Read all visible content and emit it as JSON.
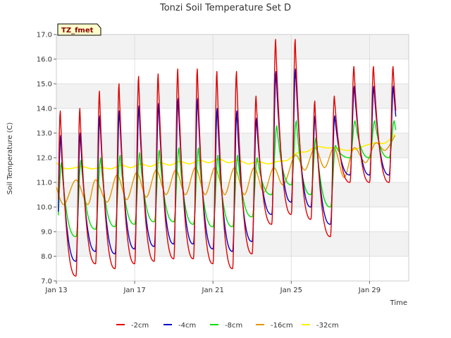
{
  "chart_data": {
    "type": "line",
    "title": "Tonzi Soil Temperature Set D",
    "xlabel": "Time",
    "ylabel": "Soil Temperature (C)",
    "site_badge": "TZ_fmet",
    "ylim": [
      7.0,
      17.0
    ],
    "yticks": [
      7.0,
      8.0,
      9.0,
      10.0,
      11.0,
      12.0,
      13.0,
      14.0,
      15.0,
      16.0,
      17.0
    ],
    "xlim": [
      0,
      18
    ],
    "xticks": [
      {
        "x": 0,
        "label": "Jan 13"
      },
      {
        "x": 4,
        "label": "Jan 17"
      },
      {
        "x": 8,
        "label": "Jan 21"
      },
      {
        "x": 12,
        "label": "Jan 25"
      },
      {
        "x": 16,
        "label": "Jan 29"
      }
    ],
    "grid": true,
    "legend_position": "bottom",
    "colors": {
      "-2cm": "#e00000",
      "-4cm": "#0000cc",
      "-8cm": "#00e000",
      "-16cm": "#e69500",
      "-32cm": "#ffee00"
    },
    "series": [
      {
        "name": "-2cm",
        "key": "d2",
        "width": 1.4
      },
      {
        "name": "-4cm",
        "key": "d4",
        "width": 1.4
      },
      {
        "name": "-8cm",
        "key": "d8",
        "width": 1.4
      },
      {
        "name": "-16cm",
        "key": "d16",
        "width": 1.4
      },
      {
        "name": "-32cm",
        "key": "d32",
        "width": 1.6
      }
    ],
    "day_maxima": {
      "d2": [
        13.9,
        14.0,
        14.7,
        15.0,
        15.3,
        15.4,
        15.6,
        15.6,
        15.5,
        15.5,
        14.5,
        16.8,
        16.8,
        14.3,
        14.5,
        15.7
      ],
      "d4": [
        12.9,
        13.0,
        13.7,
        13.9,
        14.1,
        14.2,
        14.4,
        14.4,
        14.0,
        13.9,
        13.6,
        15.5,
        15.6,
        13.7,
        13.7,
        14.9
      ],
      "d8": [
        11.8,
        11.9,
        12.0,
        12.1,
        12.2,
        12.3,
        12.4,
        12.4,
        12.1,
        12.1,
        12.0,
        13.3,
        13.5,
        12.8,
        12.5,
        13.5
      ]
    },
    "day_minima": {
      "d2": [
        7.2,
        7.2,
        7.7,
        7.5,
        7.7,
        7.8,
        7.9,
        7.9,
        7.7,
        7.5,
        8.1,
        9.3,
        9.7,
        9.5,
        8.8,
        11.0
      ],
      "d4": [
        7.8,
        7.8,
        8.2,
        8.1,
        8.3,
        8.4,
        8.5,
        8.5,
        8.3,
        8.2,
        8.6,
        9.7,
        10.2,
        10.0,
        9.3,
        11.3
      ],
      "d8": [
        8.8,
        8.8,
        9.1,
        9.2,
        9.3,
        9.4,
        9.4,
        9.3,
        9.2,
        9.2,
        9.6,
        10.5,
        10.9,
        10.5,
        10.0,
        12.0
      ]
    },
    "d16_points": [
      [
        0,
        10.8
      ],
      [
        0.4,
        10.1
      ],
      [
        1.0,
        11.1
      ],
      [
        1.6,
        10.1
      ],
      [
        2.0,
        11.1
      ],
      [
        2.6,
        10.2
      ],
      [
        3.1,
        11.3
      ],
      [
        3.6,
        10.3
      ],
      [
        4.1,
        11.4
      ],
      [
        4.6,
        10.4
      ],
      [
        5.1,
        11.5
      ],
      [
        5.6,
        10.5
      ],
      [
        6.1,
        11.5
      ],
      [
        6.6,
        10.5
      ],
      [
        7.1,
        11.6
      ],
      [
        7.6,
        10.5
      ],
      [
        8.1,
        11.6
      ],
      [
        8.6,
        10.5
      ],
      [
        9.1,
        11.6
      ],
      [
        9.6,
        10.5
      ],
      [
        10.1,
        11.6
      ],
      [
        10.6,
        10.6
      ],
      [
        11.1,
        11.6
      ],
      [
        11.6,
        10.9
      ],
      [
        12.2,
        12.1
      ],
      [
        12.7,
        11.5
      ],
      [
        13.2,
        12.4
      ],
      [
        13.7,
        11.6
      ],
      [
        14.2,
        12.4
      ],
      [
        14.7,
        11.2
      ],
      [
        15.2,
        12.4
      ],
      [
        15.8,
        11.8
      ],
      [
        16.3,
        12.6
      ],
      [
        16.8,
        12.3
      ],
      [
        17.3,
        12.9
      ]
    ],
    "d32_points": [
      [
        0,
        11.8
      ],
      [
        0.3,
        11.6
      ],
      [
        0.6,
        11.55
      ],
      [
        1.0,
        11.6
      ],
      [
        1.3,
        11.65
      ],
      [
        1.8,
        11.55
      ],
      [
        2.3,
        11.6
      ],
      [
        2.8,
        11.55
      ],
      [
        3.3,
        11.7
      ],
      [
        3.8,
        11.6
      ],
      [
        4.3,
        11.75
      ],
      [
        4.8,
        11.65
      ],
      [
        5.3,
        11.8
      ],
      [
        5.8,
        11.7
      ],
      [
        6.3,
        11.85
      ],
      [
        6.8,
        11.75
      ],
      [
        7.3,
        11.9
      ],
      [
        7.8,
        11.8
      ],
      [
        8.3,
        11.95
      ],
      [
        8.8,
        11.8
      ],
      [
        9.3,
        11.9
      ],
      [
        9.8,
        11.75
      ],
      [
        10.3,
        11.85
      ],
      [
        10.8,
        11.75
      ],
      [
        11.3,
        11.85
      ],
      [
        11.8,
        11.9
      ],
      [
        12.3,
        12.2
      ],
      [
        12.8,
        12.25
      ],
      [
        13.3,
        12.45
      ],
      [
        13.8,
        12.4
      ],
      [
        14.3,
        12.4
      ],
      [
        14.8,
        12.3
      ],
      [
        15.3,
        12.35
      ],
      [
        15.8,
        12.5
      ],
      [
        16.3,
        12.6
      ],
      [
        16.8,
        12.6
      ],
      [
        17.3,
        12.95
      ]
    ]
  }
}
